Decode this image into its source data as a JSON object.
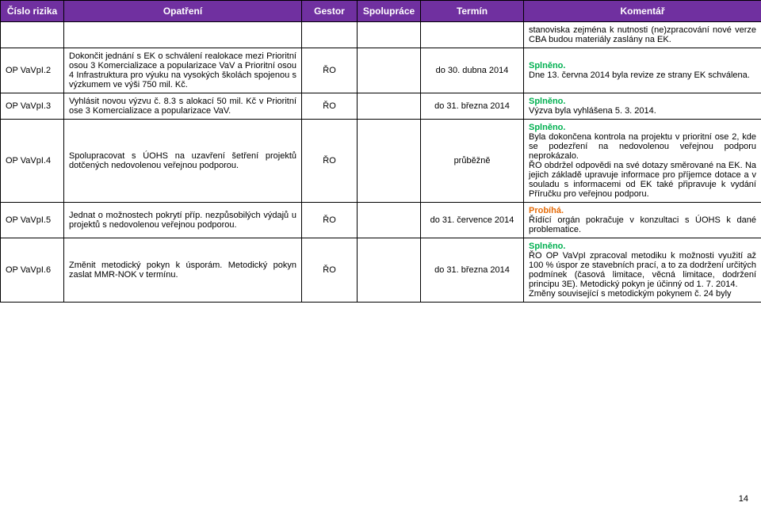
{
  "headers": {
    "id": "Číslo rizika",
    "action": "Opatření",
    "gestor": "Gestor",
    "coop": "Spolupráce",
    "term": "Termín",
    "comment": "Komentář"
  },
  "topComment": "stanoviska zejména k nutnosti (ne)zpracování nové verze CBA budou materiály zaslány na EK.",
  "rows": [
    {
      "id": "OP VaVpI.2",
      "action": "Dokončit jednání s EK o schválení realokace mezi Prioritní osou 3 Komercializace a popularizace VaV a Prioritní osou 4 Infrastruktura pro výuku na vysokých školách spojenou s výzkumem ve výši 750 mil. Kč.",
      "gestor": "ŘO",
      "term": "do 30. dubna 2014",
      "status": "Splněno.",
      "statusClass": "green",
      "comment": "Dne 13. června 2014 byla revize ze strany EK schválena."
    },
    {
      "id": "OP VaVpI.3",
      "action": "Vyhlásit novou výzvu č. 8.3 s alokací 50 mil. Kč v Prioritní ose 3 Komercializace a popularizace VaV.",
      "gestor": "ŘO",
      "term": "do 31. března 2014",
      "status": "Splněno.",
      "statusClass": "green",
      "comment": "Výzva byla vyhlášena 5. 3. 2014."
    },
    {
      "id": "OP VaVpI.4",
      "action": "Spolupracovat s ÚOHS na uzavření šetření projektů dotčených nedovolenou veřejnou podporou.",
      "gestor": "ŘO",
      "term": "průběžně",
      "status": "Splněno.",
      "statusClass": "green",
      "comment": "Byla dokončena kontrola na projektu v prioritní ose 2, kde se podezření na nedovolenou veřejnou podporu neprokázalo.\nŘO obdržel odpovědi na své dotazy směrované na EK. Na jejich základě upravuje informace pro příjemce dotace a v souladu s informacemi od EK také připravuje k vydání Příručku pro veřejnou podporu."
    },
    {
      "id": "OP VaVpI.5",
      "action": "Jednat o možnostech pokrytí příp. nezpůsobilých výdajů u projektů s nedovolenou veřejnou podporou.",
      "gestor": "ŘO",
      "term": "do 31. července 2014",
      "status": "Probíhá.",
      "statusClass": "orange",
      "comment": "Řídící orgán pokračuje v konzultaci s ÚOHS k dané problematice."
    },
    {
      "id": "OP VaVpI.6",
      "action": "Změnit metodický pokyn k úsporám. Metodický pokyn zaslat MMR-NOK v termínu.",
      "gestor": "ŘO",
      "term": "do 31. března 2014",
      "status": "Splněno.",
      "statusClass": "green",
      "comment": "ŘO OP VaVpI zpracoval metodiku k možnosti využití až 100 % úspor ze stavebních prací, a to za dodržení určitých podmínek (časová limitace, věcná limitace, dodržení principu 3E). Metodický pokyn je účinný od 1. 7. 2014.\nZměny související s metodickým pokynem č. 24 byly"
    }
  ],
  "pageNumber": "14",
  "colors": {
    "headerBg": "#7030a0",
    "headerText": "#ffffff",
    "border": "#000000",
    "green": "#00b050",
    "orange": "#e46c0a",
    "background": "#ffffff"
  }
}
